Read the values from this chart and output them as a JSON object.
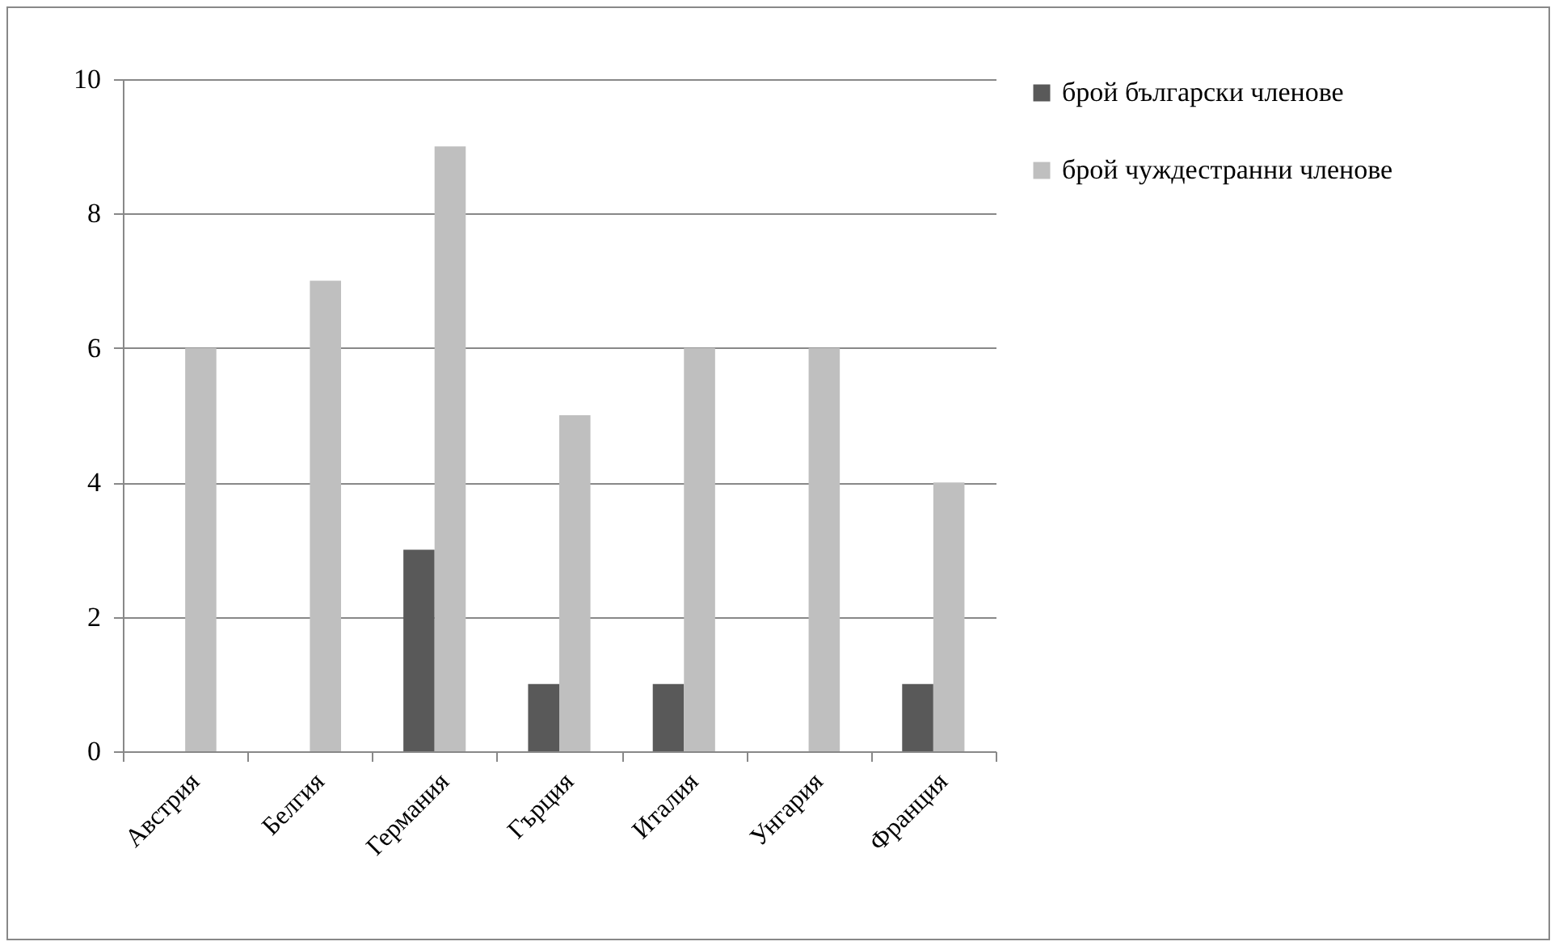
{
  "chart_data": {
    "type": "bar",
    "categories": [
      "Австрия",
      "Белгия",
      "Германия",
      "Гърция",
      "Италия",
      "Унгария",
      "Франция"
    ],
    "series": [
      {
        "name": "брой български членове",
        "color": "#595959",
        "values": [
          0,
          0,
          3,
          1,
          1,
          0,
          1
        ]
      },
      {
        "name": "брой чуждестранни членове",
        "color": "#bfbfbf",
        "values": [
          6,
          7,
          9,
          5,
          6,
          6,
          4
        ]
      }
    ],
    "ylim": [
      0,
      10
    ],
    "yticks": [
      0,
      2,
      4,
      6,
      8,
      10
    ],
    "grid": "y",
    "legend": "right"
  }
}
